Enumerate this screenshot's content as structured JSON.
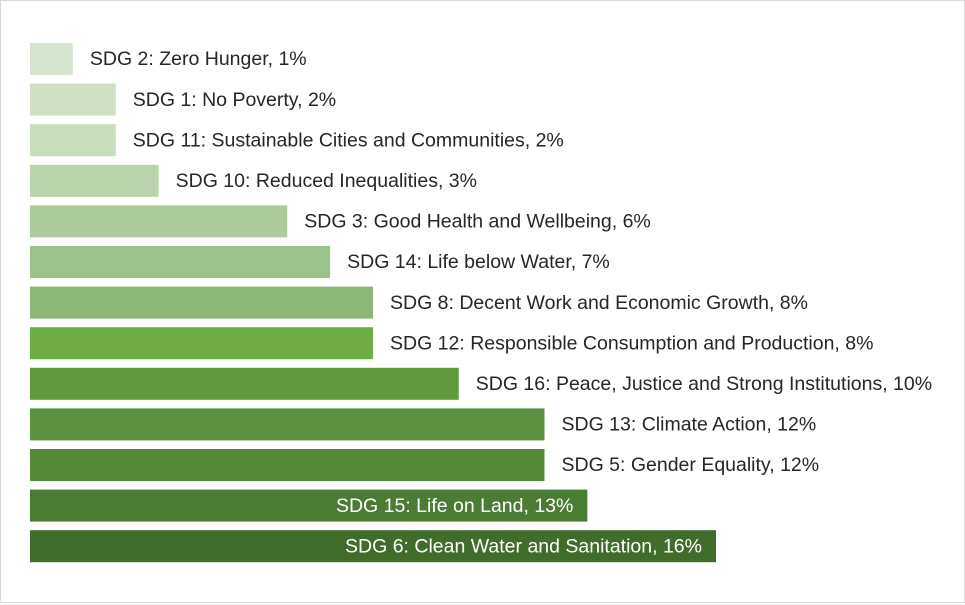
{
  "chart_data": {
    "type": "bar",
    "orientation": "horizontal",
    "title": "",
    "xlabel": "",
    "ylabel": "",
    "unit": "%",
    "categories": [
      "SDG 2: Zero Hunger",
      "SDG 1: No Poverty",
      "SDG 11: Sustainable Cities and Communities",
      "SDG 10: Reduced Inequalities",
      "SDG 3: Good Health and Wellbeing",
      "SDG 14: Life below Water",
      "SDG 8: Decent Work and Economic Growth",
      "SDG 12: Responsible Consumption and Production",
      "SDG 16: Peace, Justice and Strong Institutions",
      "SDG 13: Climate Action",
      "SDG 5: Gender Equality",
      "SDG 15: Life on Land",
      "SDG 6: Clean Water and Sanitation"
    ],
    "values": [
      1,
      2,
      2,
      3,
      6,
      7,
      8,
      8,
      10,
      12,
      12,
      13,
      16
    ],
    "data_labels": [
      "SDG 2: Zero Hunger, 1%",
      "SDG 1: No Poverty, 2%",
      "SDG 11: Sustainable Cities and Communities, 2%",
      "SDG 10: Reduced Inequalities, 3%",
      "SDG 3: Good Health and Wellbeing, 6%",
      "SDG 14: Life below Water, 7%",
      "SDG 8: Decent Work and Economic Growth, 8%",
      "SDG 12: Responsible Consumption and Production, 8%",
      "SDG 16: Peace, Justice and Strong Institutions, 10%",
      "SDG 13: Climate Action, 12%",
      "SDG 5: Gender Equality, 12%",
      "SDG 15: Life on Land, 13%",
      "SDG 6: Clean Water and Sanitation, 16%"
    ],
    "label_inside": [
      false,
      false,
      false,
      false,
      false,
      false,
      false,
      false,
      false,
      false,
      false,
      true,
      true
    ],
    "colors": [
      "#d6e5cf",
      "#cfe0c6",
      "#c8dcbe",
      "#bad3ad",
      "#abcb9b",
      "#9cc189",
      "#8bb876",
      "#6fac46",
      "#60993f",
      "#5b9140",
      "#548a3a",
      "#4a7d33",
      "#3f6e2a"
    ],
    "label_color_outside": "#262626",
    "label_color_inside": "#ffffff",
    "xlim": [
      0,
      16
    ],
    "grid": false,
    "legend": "none"
  }
}
